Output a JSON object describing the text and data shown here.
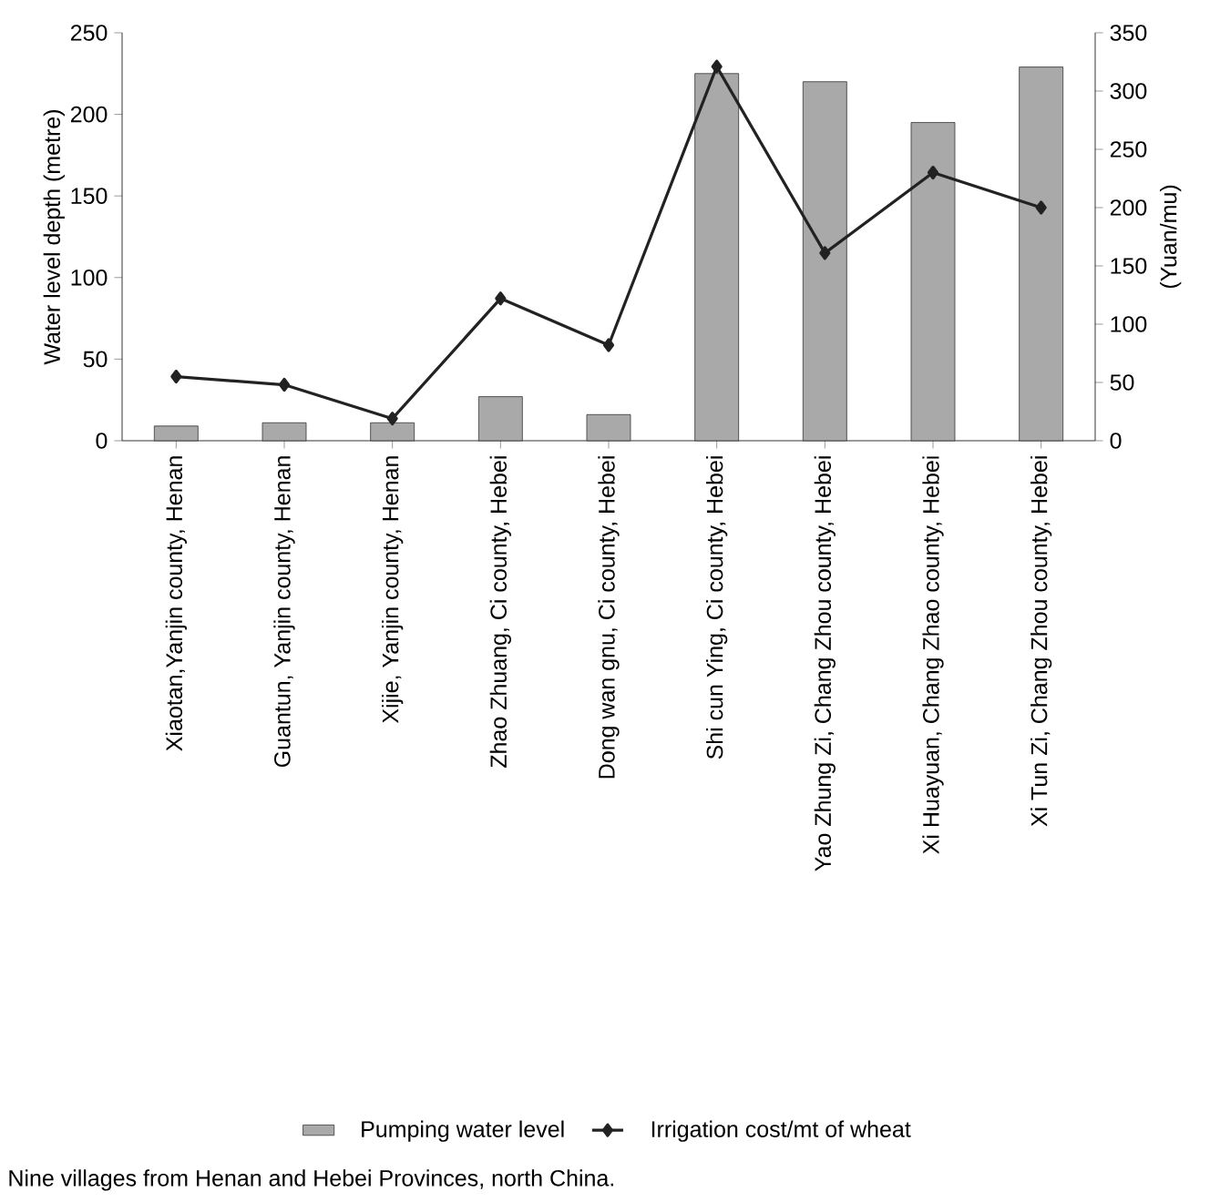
{
  "chart_data": {
    "type": "bar",
    "ylabel": "Water level depth (metre)",
    "y2label": "(Yuan/mu)",
    "categories": [
      "Xiaotan,Yanjin county, Henan",
      "Guantun, Yanjin county, Henan",
      "Xijie, Yanjin county, Henan",
      "Zhao Zhuang, Ci county, Hebei",
      "Dong wan gnu, Ci county, Hebei",
      "Shi cun Ying, Ci county, Hebei",
      "Yao Zhung Zi, Chang Zhou county, Hebei",
      "Xi Huayuan, Chang Zhao county, Hebei",
      "Xi Tun Zi, Chang Zhou county, Hebei"
    ],
    "series": [
      {
        "name": "Pumping water level",
        "color": "#a9a9a9",
        "values": [
          9,
          11,
          11,
          27,
          16,
          225,
          220,
          195,
          229
        ]
      },
      {
        "name": "Irrigation cost/mt of wheat",
        "type": "line",
        "axis": "y2",
        "color": "#222222",
        "marker": "diamond",
        "values": [
          55,
          48,
          19,
          122,
          82,
          321,
          161,
          230,
          200
        ]
      }
    ],
    "ylim": [
      0,
      250
    ],
    "yticks": [
      0,
      50,
      100,
      150,
      200,
      250
    ],
    "y2lim": [
      0,
      350
    ],
    "y2ticks": [
      0,
      50,
      100,
      150,
      200,
      250,
      300,
      350
    ],
    "legend": "bottom",
    "annotations": [
      "Nine villages from Henan and Hebei Provinces, north China."
    ]
  }
}
